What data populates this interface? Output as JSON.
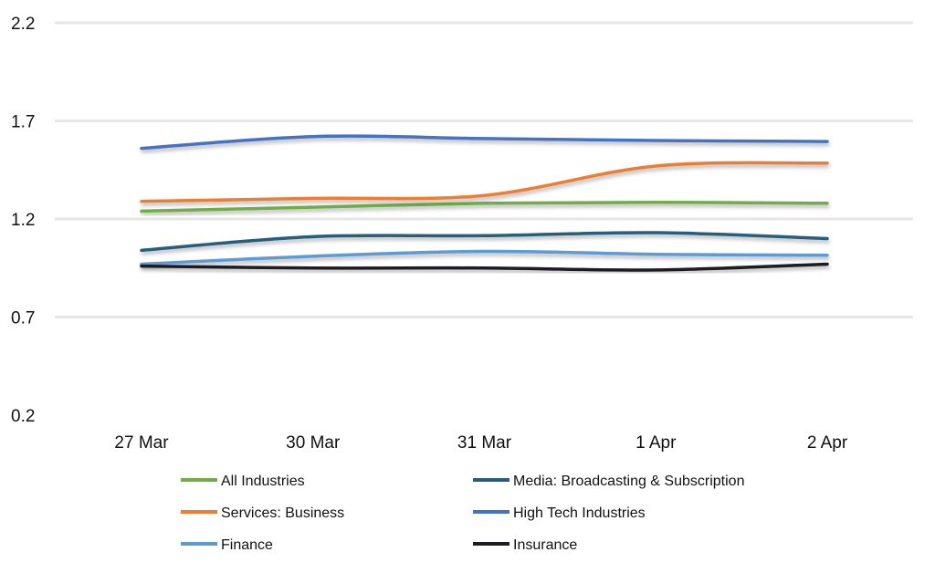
{
  "chart_data": {
    "type": "line",
    "title": "",
    "xlabel": "",
    "ylabel": "",
    "categories": [
      "27 Mar",
      "30 Mar",
      "31 Mar",
      "1 Apr",
      "2 Apr"
    ],
    "yticks": [
      "2.2",
      "1.7",
      "1.2",
      "0.7",
      "0.2"
    ],
    "ytick_values": [
      2.2,
      1.7,
      1.2,
      0.7,
      0.2
    ],
    "ylim": [
      0.2,
      2.2
    ],
    "grid": true,
    "legend_position": "bottom",
    "series": [
      {
        "name": "All Industries",
        "color": "#70ad47",
        "values": [
          1.24,
          1.26,
          1.28,
          1.285,
          1.28
        ]
      },
      {
        "name": "Media: Broadcasting & Subscription",
        "color": "#255e7e",
        "values": [
          1.04,
          1.11,
          1.115,
          1.13,
          1.1
        ]
      },
      {
        "name": "Services: Business",
        "color": "#ed7d31",
        "values": [
          1.29,
          1.305,
          1.32,
          1.47,
          1.485
        ]
      },
      {
        "name": "High Tech Industries",
        "color": "#4472c4",
        "values": [
          1.56,
          1.62,
          1.61,
          1.6,
          1.595
        ]
      },
      {
        "name": "Finance",
        "color": "#5b9bd5",
        "values": [
          0.97,
          1.01,
          1.035,
          1.02,
          1.015
        ]
      },
      {
        "name": "Insurance",
        "color": "#1c1c24",
        "values": [
          0.96,
          0.95,
          0.95,
          0.94,
          0.97
        ]
      }
    ]
  }
}
